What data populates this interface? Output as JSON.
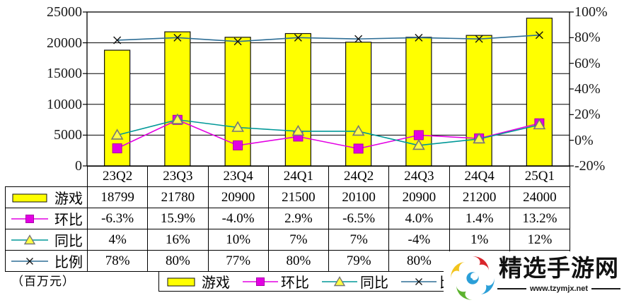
{
  "chart_data": {
    "type": "combo-bar-line",
    "categories": [
      "23Q2",
      "23Q3",
      "23Q4",
      "24Q1",
      "24Q2",
      "24Q3",
      "24Q4",
      "25Q1"
    ],
    "series": [
      {
        "name": "游戏",
        "kind": "bar",
        "axis": "left",
        "color": "#ffff00",
        "border": "#111111",
        "values": [
          18799,
          21780,
          20900,
          21500,
          20100,
          20900,
          21200,
          24000
        ],
        "display": [
          "18799",
          "21780",
          "20900",
          "21500",
          "20100",
          "20900",
          "21200",
          "24000"
        ]
      },
      {
        "name": "环比",
        "kind": "line",
        "marker": "square",
        "axis": "right",
        "color": "#e300e3",
        "marker_fill": "#e300e3",
        "marker_stroke": "#aa00aa",
        "values": [
          -6.3,
          15.9,
          -4.0,
          2.9,
          -6.5,
          4.0,
          1.4,
          13.2
        ],
        "display": [
          "-6.3%",
          "15.9%",
          "-4.0%",
          "2.9%",
          "-6.5%",
          "4.0%",
          "1.4%",
          "13.2%"
        ]
      },
      {
        "name": "同比",
        "kind": "line",
        "marker": "triangle",
        "axis": "right",
        "color": "#009898",
        "marker_fill": "#ffff44",
        "marker_stroke": "#777777",
        "values": [
          4,
          16,
          10,
          7,
          7,
          -4,
          1,
          12
        ],
        "display": [
          "4%",
          "16%",
          "10%",
          "7%",
          "7%",
          "-4%",
          "1%",
          "12%"
        ]
      },
      {
        "name": "比例",
        "kind": "line",
        "marker": "x",
        "axis": "right",
        "color": "#2e6e96",
        "marker_stroke": "#111111",
        "values": [
          78,
          80,
          77,
          80,
          79,
          80,
          79,
          82
        ],
        "display": [
          "78%",
          "80%",
          "77%",
          "80%",
          "79%",
          "80%",
          "79%",
          "82%"
        ]
      }
    ],
    "left_axis": {
      "min": 0,
      "max": 25000,
      "tick_values": [
        25000,
        20000,
        15000,
        10000,
        5000,
        0
      ],
      "ticks": [
        "25000",
        "20000",
        "15000",
        "10000",
        "5000",
        "0"
      ]
    },
    "right_axis": {
      "min": -20,
      "max": 100,
      "tick_values": [
        100,
        80,
        60,
        40,
        20,
        0,
        -20
      ],
      "ticks": [
        "100%",
        "80%",
        "60%",
        "40%",
        "20%",
        "0%",
        "-20%"
      ]
    },
    "grid": "horizontal",
    "unit_label": "（百万元）"
  },
  "watermark": {
    "site_name": "精选手游网",
    "site_url": "www.tzymjx.net",
    "logo_colors": {
      "top": "#d9262c",
      "right": "#2b9fd8",
      "bottom": "#5cb32e",
      "left": "#f2c41d",
      "center": "#2b9fd8"
    }
  }
}
